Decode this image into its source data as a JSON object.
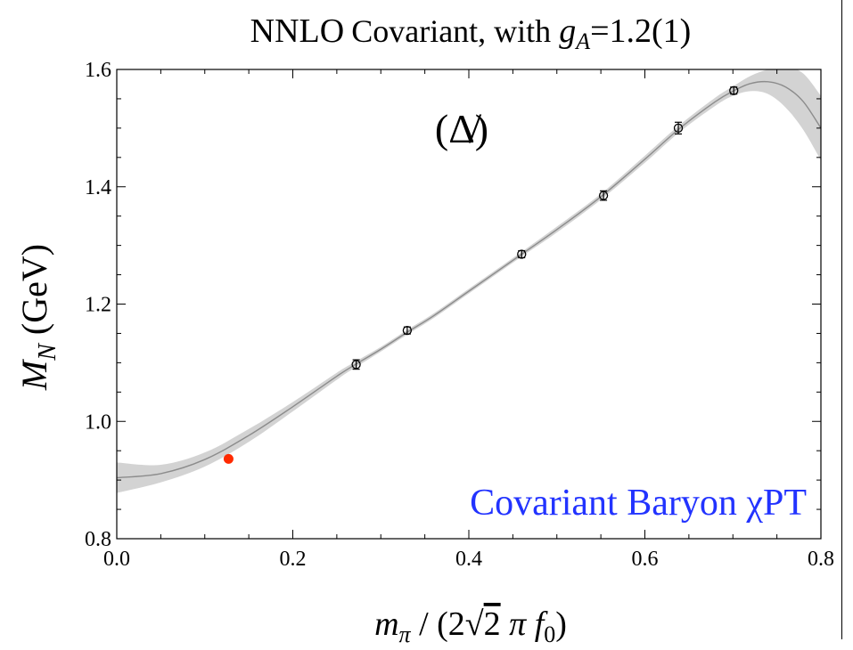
{
  "chart_data": {
    "type": "line",
    "title": {
      "prefix": "NNLO",
      "main": "Covariant, with ",
      "symbol": "g",
      "subscript": "A",
      "suffix": "=1.2(1)"
    },
    "xlabel": {
      "m": "m",
      "sub": "π",
      "mid": " / (2",
      "sqrt": "√",
      "two": "2",
      "pi": " π ",
      "f": "f",
      "fsub": "0",
      "close": ")"
    },
    "ylabel": {
      "M": "M",
      "sub": "N",
      "unit": " (GeV)"
    },
    "panel_label": "(Δ̸)",
    "annotation": "Covariant Baryon χPT",
    "xlim": [
      0.0,
      0.8
    ],
    "ylim": [
      0.8,
      1.6
    ],
    "xticks": [
      "0.0",
      "0.2",
      "0.4",
      "0.6",
      "0.8"
    ],
    "yticks": [
      "0.8",
      "1.0",
      "1.2",
      "1.4",
      "1.6"
    ],
    "grid": false,
    "colors": {
      "fit_line": "#8c8c8c",
      "band": "#d3d3d3",
      "physical_point": "#ff2a00",
      "annotation": "#2233ff",
      "data": "#000000"
    },
    "series": [
      {
        "kind": "fit",
        "x": [
          0.0,
          0.05,
          0.1,
          0.15,
          0.2,
          0.25,
          0.27,
          0.3,
          0.33,
          0.36,
          0.4,
          0.46,
          0.5,
          0.55,
          0.6,
          0.64,
          0.68,
          0.7,
          0.72,
          0.74,
          0.76,
          0.78,
          0.8
        ],
        "y": [
          0.904,
          0.911,
          0.935,
          0.976,
          1.025,
          1.077,
          1.096,
          1.123,
          1.152,
          1.18,
          1.222,
          1.285,
          1.327,
          1.383,
          1.447,
          1.5,
          1.545,
          1.563,
          1.576,
          1.579,
          1.57,
          1.545,
          1.5
        ],
        "lower": [
          0.878,
          0.896,
          0.923,
          0.965,
          1.017,
          1.071,
          1.091,
          1.119,
          1.148,
          1.176,
          1.218,
          1.281,
          1.322,
          1.378,
          1.441,
          1.494,
          1.538,
          1.555,
          1.563,
          1.558,
          1.535,
          1.497,
          1.445
        ],
        "upper": [
          0.93,
          0.926,
          0.947,
          0.987,
          1.033,
          1.083,
          1.101,
          1.127,
          1.156,
          1.184,
          1.226,
          1.289,
          1.332,
          1.388,
          1.453,
          1.506,
          1.552,
          1.571,
          1.589,
          1.6,
          1.605,
          1.593,
          1.555
        ]
      },
      {
        "kind": "lattice",
        "x": [
          0.272,
          0.33,
          0.46,
          0.553,
          0.638,
          0.701
        ],
        "y": [
          1.097,
          1.155,
          1.285,
          1.385,
          1.5,
          1.564
        ],
        "err": [
          0.008,
          0.006,
          0.006,
          0.008,
          0.01,
          0.006
        ]
      },
      {
        "kind": "physical",
        "x": [
          0.127
        ],
        "y": [
          0.936
        ]
      }
    ]
  }
}
